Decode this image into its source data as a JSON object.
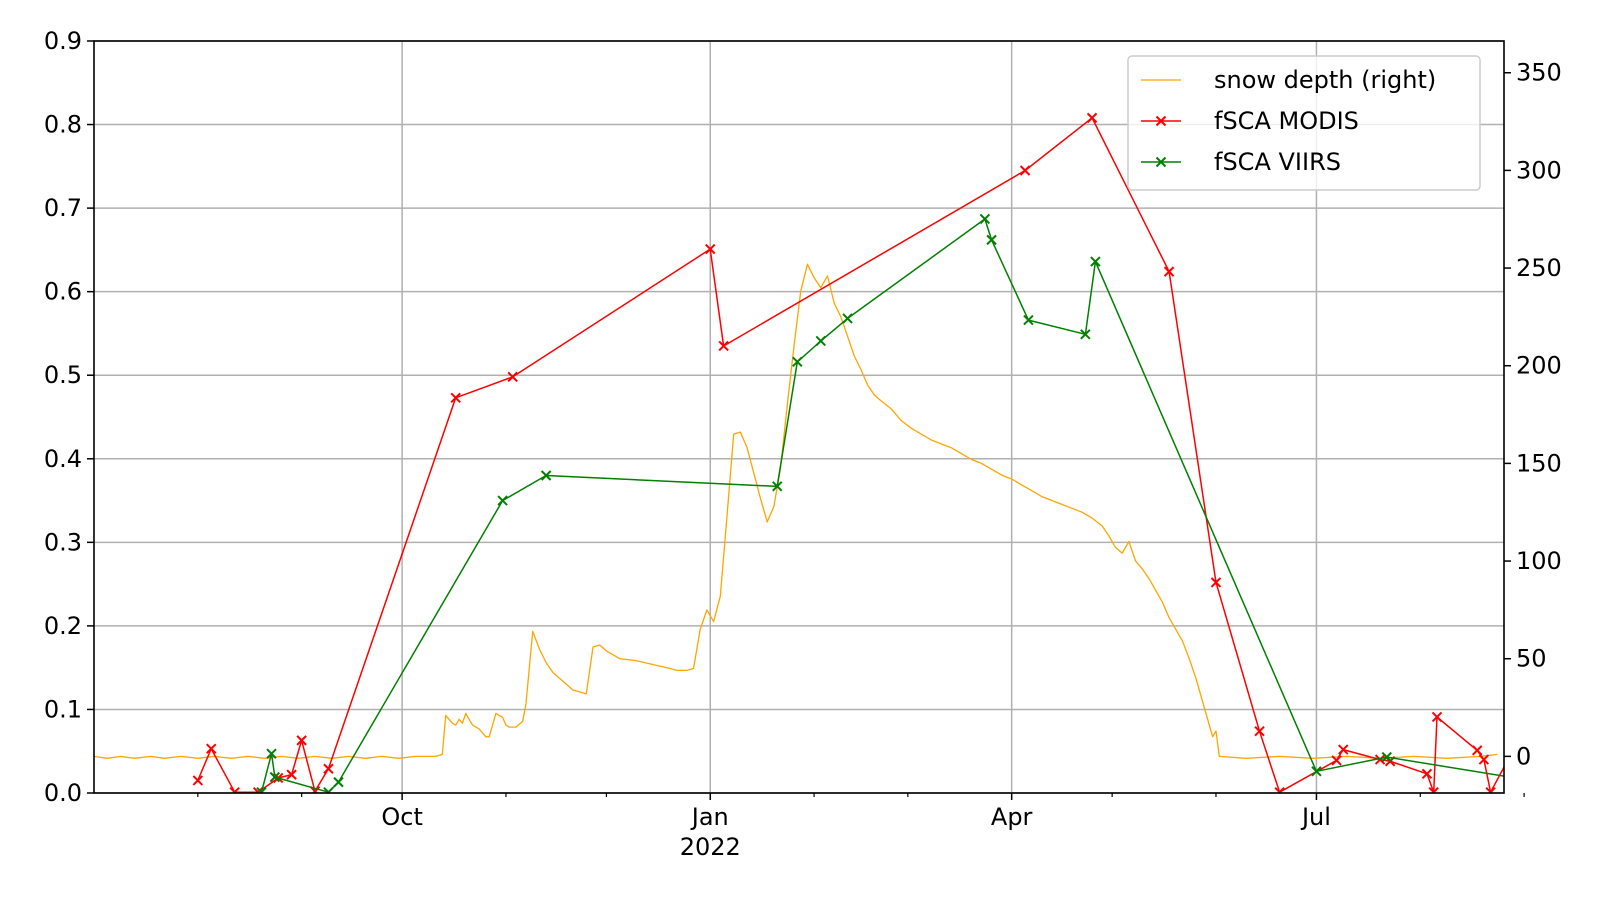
{
  "chart_data": {
    "type": "line",
    "title": "",
    "xlabel": "",
    "ylabel": "",
    "y2label": "",
    "grid": true,
    "legend_position": "top-right",
    "xlim": [
      "2021-07-01",
      "2022-08-26"
    ],
    "ylim": [
      0,
      0.9
    ],
    "y2lim": [
      -18.75,
      366.25
    ],
    "x_major_ticks": [
      {
        "date": "2021-10-01",
        "label": "Oct",
        "sublabel": ""
      },
      {
        "date": "2022-01-01",
        "label": "Jan",
        "sublabel": "2022"
      },
      {
        "date": "2022-04-01",
        "label": "Apr",
        "sublabel": ""
      },
      {
        "date": "2022-07-01",
        "label": "Jul",
        "sublabel": ""
      }
    ],
    "x_minor_ticks": [
      "2021-08-01",
      "2021-09-01",
      "2021-11-01",
      "2021-12-01",
      "2022-02-01",
      "2022-03-01",
      "2022-05-01",
      "2022-06-01",
      "2022-08-01",
      "2022-09-01"
    ],
    "y_ticks": [
      {
        "value": 0.0,
        "label": "0.0"
      },
      {
        "value": 0.1,
        "label": "0.1"
      },
      {
        "value": 0.2,
        "label": "0.2"
      },
      {
        "value": 0.3,
        "label": "0.3"
      },
      {
        "value": 0.4,
        "label": "0.4"
      },
      {
        "value": 0.5,
        "label": "0.5"
      },
      {
        "value": 0.6,
        "label": "0.6"
      },
      {
        "value": 0.7,
        "label": "0.7"
      },
      {
        "value": 0.8,
        "label": "0.8"
      },
      {
        "value": 0.9,
        "label": "0.9"
      }
    ],
    "y2_ticks": [
      {
        "value": 0,
        "label": "0"
      },
      {
        "value": 50,
        "label": "50"
      },
      {
        "value": 100,
        "label": "100"
      },
      {
        "value": 150,
        "label": "150"
      },
      {
        "value": 200,
        "label": "200"
      },
      {
        "value": 250,
        "label": "250"
      },
      {
        "value": 300,
        "label": "300"
      },
      {
        "value": 350,
        "label": "350"
      }
    ],
    "series": [
      {
        "name": "snow depth (right)",
        "axis": "right",
        "color": "#ffa500",
        "marker": "none",
        "points": [
          [
            "2021-07-01",
            0
          ],
          [
            "2021-07-05",
            -1
          ],
          [
            "2021-07-09",
            0
          ],
          [
            "2021-07-13",
            -1
          ],
          [
            "2021-07-18",
            0
          ],
          [
            "2021-07-22",
            -1
          ],
          [
            "2021-07-27",
            0
          ],
          [
            "2021-08-01",
            -1
          ],
          [
            "2021-08-06",
            0
          ],
          [
            "2021-08-11",
            -1
          ],
          [
            "2021-08-16",
            0
          ],
          [
            "2021-08-21",
            -1
          ],
          [
            "2021-08-26",
            0
          ],
          [
            "2021-08-31",
            -1
          ],
          [
            "2021-09-05",
            0
          ],
          [
            "2021-09-10",
            -1
          ],
          [
            "2021-09-15",
            0
          ],
          [
            "2021-09-20",
            -1
          ],
          [
            "2021-09-25",
            0
          ],
          [
            "2021-09-30",
            -1
          ],
          [
            "2021-10-05",
            0
          ],
          [
            "2021-10-11",
            0
          ],
          [
            "2021-10-13",
            1
          ],
          [
            "2021-10-14",
            21
          ],
          [
            "2021-10-16",
            17
          ],
          [
            "2021-10-17",
            16
          ],
          [
            "2021-10-18",
            19
          ],
          [
            "2021-10-19",
            17
          ],
          [
            "2021-10-20",
            22
          ],
          [
            "2021-10-22",
            16
          ],
          [
            "2021-10-24",
            14
          ],
          [
            "2021-10-26",
            10
          ],
          [
            "2021-10-27",
            10
          ],
          [
            "2021-10-29",
            22
          ],
          [
            "2021-10-31",
            20
          ],
          [
            "2021-11-01",
            16
          ],
          [
            "2021-11-02",
            15
          ],
          [
            "2021-11-04",
            15
          ],
          [
            "2021-11-06",
            18
          ],
          [
            "2021-11-07",
            27
          ],
          [
            "2021-11-09",
            64
          ],
          [
            "2021-11-11",
            55
          ],
          [
            "2021-11-13",
            48
          ],
          [
            "2021-11-15",
            43
          ],
          [
            "2021-11-17",
            40
          ],
          [
            "2021-11-19",
            37
          ],
          [
            "2021-11-21",
            34
          ],
          [
            "2021-11-23",
            33
          ],
          [
            "2021-11-25",
            32
          ],
          [
            "2021-11-27",
            56
          ],
          [
            "2021-11-29",
            57
          ],
          [
            "2021-12-01",
            54
          ],
          [
            "2021-12-05",
            50
          ],
          [
            "2021-12-10",
            49
          ],
          [
            "2021-12-15",
            47
          ],
          [
            "2021-12-20",
            45
          ],
          [
            "2021-12-22",
            44
          ],
          [
            "2021-12-25",
            44
          ],
          [
            "2021-12-27",
            45
          ],
          [
            "2021-12-29",
            65
          ],
          [
            "2021-12-31",
            75
          ],
          [
            "2022-01-02",
            69
          ],
          [
            "2022-01-04",
            82
          ],
          [
            "2022-01-06",
            123
          ],
          [
            "2022-01-08",
            165
          ],
          [
            "2022-01-10",
            166
          ],
          [
            "2022-01-12",
            158
          ],
          [
            "2022-01-14",
            145
          ],
          [
            "2022-01-16",
            132
          ],
          [
            "2022-01-18",
            120
          ],
          [
            "2022-01-20",
            128
          ],
          [
            "2022-01-22",
            148
          ],
          [
            "2022-01-24",
            180
          ],
          [
            "2022-01-26",
            210
          ],
          [
            "2022-01-28",
            238
          ],
          [
            "2022-01-30",
            252
          ],
          [
            "2022-02-01",
            245
          ],
          [
            "2022-02-03",
            240
          ],
          [
            "2022-02-05",
            246
          ],
          [
            "2022-02-07",
            232
          ],
          [
            "2022-02-09",
            225
          ],
          [
            "2022-02-11",
            215
          ],
          [
            "2022-02-13",
            205
          ],
          [
            "2022-02-15",
            198
          ],
          [
            "2022-02-17",
            190
          ],
          [
            "2022-02-19",
            185
          ],
          [
            "2022-02-21",
            182
          ],
          [
            "2022-02-24",
            178
          ],
          [
            "2022-02-27",
            172
          ],
          [
            "2022-03-02",
            168
          ],
          [
            "2022-03-05",
            165
          ],
          [
            "2022-03-08",
            162
          ],
          [
            "2022-03-11",
            160
          ],
          [
            "2022-03-14",
            158
          ],
          [
            "2022-03-17",
            155
          ],
          [
            "2022-03-20",
            152
          ],
          [
            "2022-03-23",
            150
          ],
          [
            "2022-03-26",
            147
          ],
          [
            "2022-03-29",
            144
          ],
          [
            "2022-04-01",
            142
          ],
          [
            "2022-04-04",
            139
          ],
          [
            "2022-04-07",
            136
          ],
          [
            "2022-04-10",
            133
          ],
          [
            "2022-04-13",
            131
          ],
          [
            "2022-04-16",
            129
          ],
          [
            "2022-04-19",
            127
          ],
          [
            "2022-04-22",
            125
          ],
          [
            "2022-04-25",
            122
          ],
          [
            "2022-04-28",
            118
          ],
          [
            "2022-04-30",
            113
          ],
          [
            "2022-05-02",
            107
          ],
          [
            "2022-05-04",
            104
          ],
          [
            "2022-05-06",
            110
          ],
          [
            "2022-05-08",
            100
          ],
          [
            "2022-05-10",
            96
          ],
          [
            "2022-05-12",
            91
          ],
          [
            "2022-05-14",
            85
          ],
          [
            "2022-05-16",
            79
          ],
          [
            "2022-05-18",
            71
          ],
          [
            "2022-05-20",
            65
          ],
          [
            "2022-05-22",
            59
          ],
          [
            "2022-05-24",
            50
          ],
          [
            "2022-05-26",
            40
          ],
          [
            "2022-05-28",
            28
          ],
          [
            "2022-05-30",
            16
          ],
          [
            "2022-05-31",
            10
          ],
          [
            "2022-06-01",
            13
          ],
          [
            "2022-06-02",
            0
          ],
          [
            "2022-06-10",
            -1
          ],
          [
            "2022-06-20",
            0
          ],
          [
            "2022-06-30",
            -1
          ],
          [
            "2022-07-10",
            0
          ],
          [
            "2022-07-20",
            -1
          ],
          [
            "2022-07-30",
            0
          ],
          [
            "2022-08-09",
            -1
          ],
          [
            "2022-08-19",
            0
          ],
          [
            "2022-08-24",
            1
          ]
        ]
      },
      {
        "name": "fSCA MODIS",
        "axis": "left",
        "color": "#ff0000",
        "marker": "x",
        "points": [
          [
            "2021-08-01",
            0.015
          ],
          [
            "2021-08-05",
            0.053
          ],
          [
            "2021-08-12",
            0.001
          ],
          [
            "2021-08-19",
            0.001
          ],
          [
            "2021-08-25",
            0.018
          ],
          [
            "2021-08-29",
            0.022
          ],
          [
            "2021-09-01",
            0.063
          ],
          [
            "2021-09-05",
            0.002
          ],
          [
            "2021-09-09",
            0.029
          ],
          [
            "2021-10-17",
            0.473
          ],
          [
            "2021-11-03",
            0.498
          ],
          [
            "2022-01-01",
            0.651
          ],
          [
            "2022-01-05",
            0.535
          ],
          [
            "2022-04-05",
            0.745
          ],
          [
            "2022-04-25",
            0.808
          ],
          [
            "2022-05-18",
            0.624
          ],
          [
            "2022-06-01",
            0.252
          ],
          [
            "2022-06-14",
            0.074
          ],
          [
            "2022-06-20",
            0.001
          ],
          [
            "2022-07-07",
            0.039
          ],
          [
            "2022-07-09",
            0.052
          ],
          [
            "2022-07-20",
            0.04
          ],
          [
            "2022-07-23",
            0.038
          ],
          [
            "2022-08-03",
            0.023
          ],
          [
            "2022-08-05",
            0.001
          ],
          [
            "2022-08-06",
            0.091
          ],
          [
            "2022-08-18",
            0.051
          ],
          [
            "2022-08-20",
            0.04
          ],
          [
            "2022-08-22",
            0.001
          ],
          [
            "2022-08-28",
            0.046
          ],
          [
            "2022-09-02",
            0.01
          ]
        ]
      },
      {
        "name": "fSCA VIIRS",
        "axis": "left",
        "color": "#008000",
        "marker": "x",
        "points": [
          [
            "2021-08-20",
            0.001
          ],
          [
            "2021-08-23",
            0.047
          ],
          [
            "2021-08-24",
            0.019
          ],
          [
            "2021-09-09",
            0.001
          ],
          [
            "2021-09-12",
            0.013
          ],
          [
            "2021-10-31",
            0.35
          ],
          [
            "2021-11-13",
            0.38
          ],
          [
            "2022-01-21",
            0.367
          ],
          [
            "2022-01-27",
            0.516
          ],
          [
            "2022-02-03",
            0.541
          ],
          [
            "2022-02-11",
            0.568
          ],
          [
            "2022-03-24",
            0.687
          ],
          [
            "2022-03-26",
            0.662
          ],
          [
            "2022-04-06",
            0.566
          ],
          [
            "2022-04-23",
            0.549
          ],
          [
            "2022-04-26",
            0.636
          ],
          [
            "2022-07-01",
            0.026
          ],
          [
            "2022-07-22",
            0.043
          ],
          [
            "2022-08-31",
            0.017
          ]
        ]
      }
    ]
  }
}
